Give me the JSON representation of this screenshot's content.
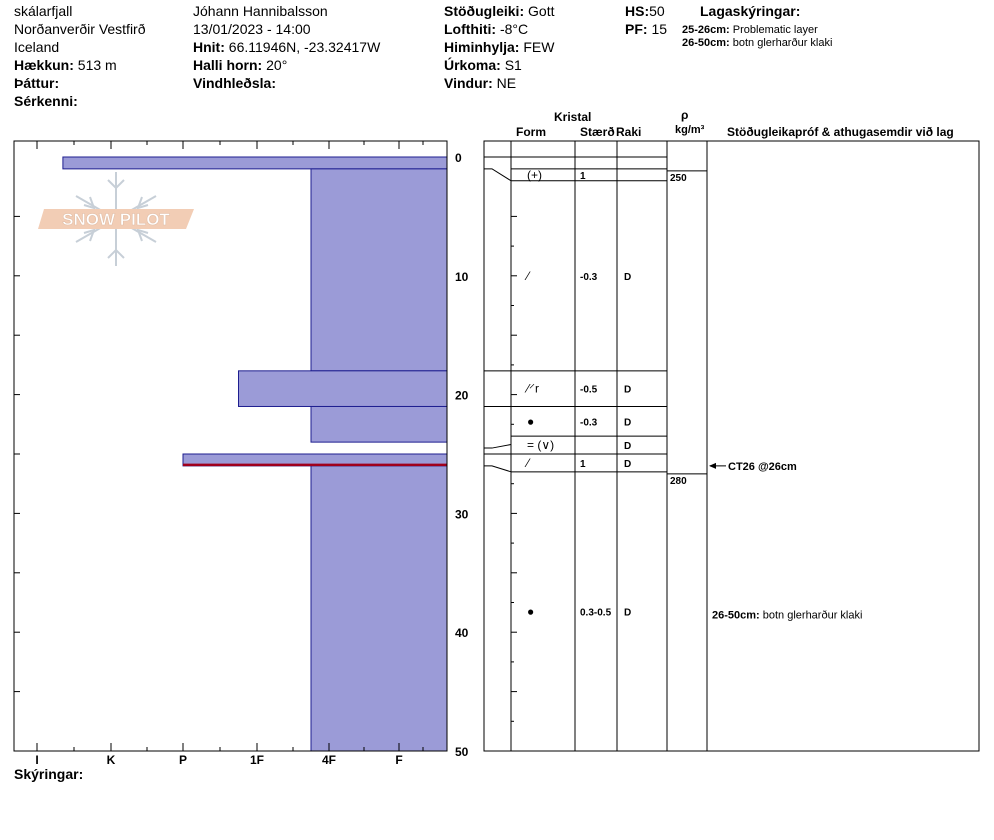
{
  "header": {
    "location": "skálarfjall",
    "region": "Norðanverðir Vestfirð",
    "country": "Iceland",
    "elevation_label": "Hækkun:",
    "elevation_value": "513 m",
    "layer_label": "Þáttur:",
    "features_label": "Sérkenni:",
    "observer": "Jóhann Hannibalsson",
    "datetime": "13/01/2023 - 14:00",
    "coords_label": "Hnit:",
    "coords_value": "66.11946N, -23.32417W",
    "slope_label": "Halli horn:",
    "slope_value": "20°",
    "wind_loading_label": "Vindhleðsla:",
    "stability_label": "Stöðugleiki:",
    "stability_value": "Gott",
    "air_temp_label": "Lofthiti:",
    "air_temp_value": "-8°C",
    "sky_label": "Himinhylja:",
    "sky_value": "FEW",
    "precip_label": "Úrkoma:",
    "precip_value": "S1",
    "wind_label": "Vindur:",
    "wind_value": "NE",
    "hs_label": "HS:",
    "hs_value": "50",
    "pf_label": "PF:",
    "pf_value": "15",
    "layer_notes_label": "Lagaskýringar:",
    "layer_notes": [
      {
        "range": "25-26cm:",
        "text": "Problematic layer"
      },
      {
        "range": "26-50cm:",
        "text": "botn glerharður klaki"
      }
    ]
  },
  "columns": {
    "kristal": "Kristal",
    "form": "Form",
    "staerd": "Stærð",
    "raki": "Raki",
    "rho": "ρ",
    "rho_unit": "kg/m³",
    "stability_tests": "Stöðugleikapróf & athugasemdir við lag"
  },
  "footer": {
    "notes_label": "Skýringar:"
  },
  "logo_text": "SNOW PILOT",
  "chart_data": {
    "type": "bar",
    "orientation": "horizontal",
    "x_categories": [
      "I",
      "K",
      "P",
      "1F",
      "4F",
      "F"
    ],
    "y_ticks": [
      "0",
      "10",
      "20",
      "30",
      "40",
      "50"
    ],
    "ylim": [
      0,
      50
    ],
    "hardness_profile": [
      {
        "from": 0,
        "to": 1,
        "hardness": 0.35
      },
      {
        "from": 1,
        "to": 18,
        "hardness": 3.75
      },
      {
        "from": 18,
        "to": 21,
        "hardness": 2.75
      },
      {
        "from": 21,
        "to": 24,
        "hardness": 3.75
      },
      {
        "from": 24,
        "to": 25,
        "hardness": 5.65
      },
      {
        "from": 25,
        "to": 26,
        "hardness": 2.0
      },
      {
        "from": 26,
        "to": 50,
        "hardness": 3.75
      }
    ],
    "problematic_layer_depth": 26,
    "layers": [
      {
        "from": 0,
        "to": 1,
        "form": "",
        "size": "",
        "wetness": ""
      },
      {
        "from": 1,
        "to": 2,
        "form": "(+)",
        "size": "1",
        "wetness": ""
      },
      {
        "from": 2,
        "to": 18,
        "form": "⁄",
        "size": "-0.3",
        "wetness": "D"
      },
      {
        "from": 18,
        "to": 21,
        "form": "⁄⸍r",
        "size": "-0.5",
        "wetness": "D"
      },
      {
        "from": 21,
        "to": 23.5,
        "form": "●",
        "size": "-0.3",
        "wetness": "D"
      },
      {
        "from": 23.5,
        "to": 25,
        "form": "= (∨)",
        "size": "",
        "wetness": "D"
      },
      {
        "from": 25,
        "to": 26.5,
        "form": "⁄",
        "size": "1",
        "wetness": "D"
      },
      {
        "from": 26.5,
        "to": 50,
        "form": "●",
        "size": "0.3-0.5",
        "wetness": "D"
      }
    ],
    "densities": [
      {
        "depth": 1,
        "value": "250"
      },
      {
        "depth": 26.5,
        "value": "280"
      }
    ],
    "stability_tests": [
      {
        "depth": 26,
        "text": "CT26 @26cm"
      }
    ],
    "layer_comments": [
      {
        "depth": 38.5,
        "range": "26-50cm:",
        "text": "botn glerharður klaki"
      }
    ],
    "colors": {
      "fill": "#9b9bd7",
      "stroke": "#1d1d8f",
      "problem": "#a0001c"
    }
  }
}
